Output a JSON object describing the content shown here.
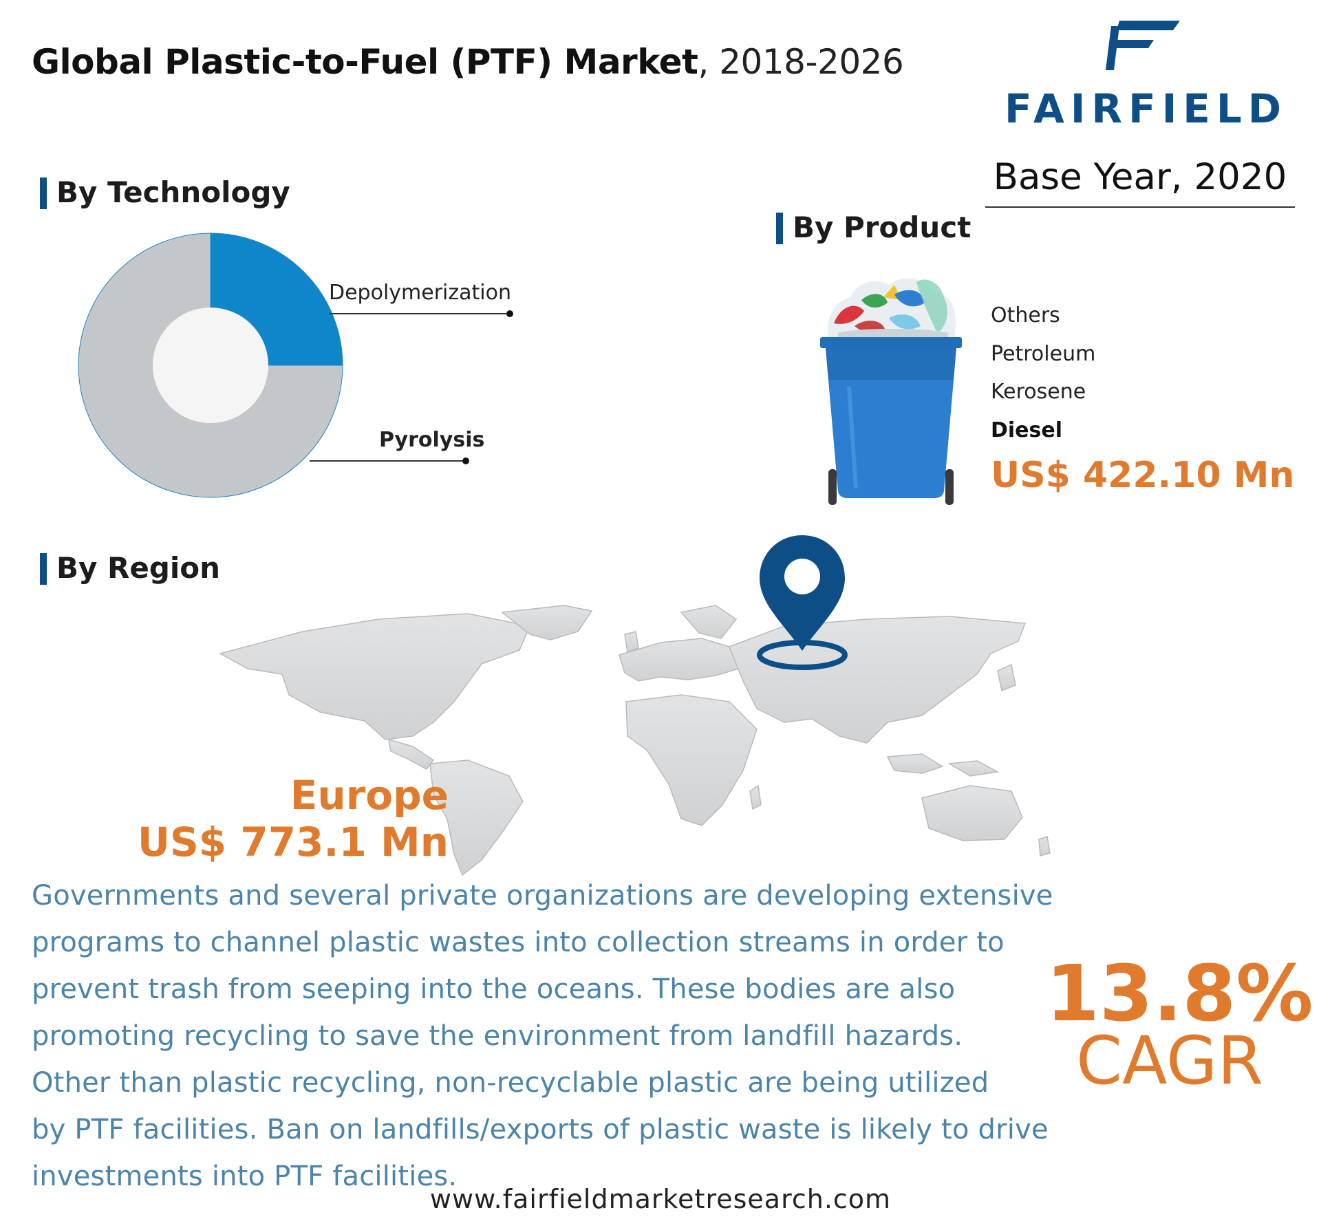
{
  "header": {
    "title_bold": "Global Plastic-to-Fuel (PTF) Market",
    "title_years": ", 2018-2026",
    "brand": "FAIRFIELD",
    "base_year": "Base Year, 2020"
  },
  "sections": {
    "technology": "By Technology",
    "product": "By Product",
    "region": "By Region"
  },
  "chart_data": {
    "type": "pie",
    "labels": [
      "Depolymerization",
      "Pyrolysis"
    ],
    "values": [
      25,
      75
    ],
    "colors": [
      "#0f86c9",
      "#c4c7ca"
    ],
    "style": "donut"
  },
  "product": {
    "items": [
      "Others",
      "Petroleum",
      "Kerosene",
      "Diesel"
    ],
    "highlight": "Diesel",
    "value": "US$ 422.10 Mn",
    "icon": "trash-bin-icon"
  },
  "region": {
    "name": "Europe",
    "value": "US$ 773.1 Mn",
    "icons": [
      "world-map",
      "location-pin-icon"
    ]
  },
  "body": {
    "lines": [
      "Governments and several private organizations are developing extensive",
      "programs to channel plastic wastes into collection streams in order to",
      "prevent trash from seeping into the oceans. These bodies are also",
      "promoting recycling to save the environment from landfill hazards.",
      "Other than plastic recycling, non-recyclable plastic are being utilized",
      "by PTF facilities. Ban on landfills/exports of plastic waste is likely to drive",
      "investments into PTF facilities."
    ]
  },
  "cagr": {
    "value": "13.8%",
    "label": "CAGR"
  },
  "footer": {
    "website": "www.fairfieldmarketresearch.com"
  },
  "colors": {
    "accent": "#e07b2e",
    "brand": "#0e4e86",
    "body_text": "#4a84ab",
    "donut_blue": "#0f86c9",
    "donut_gray": "#c4c7ca"
  }
}
